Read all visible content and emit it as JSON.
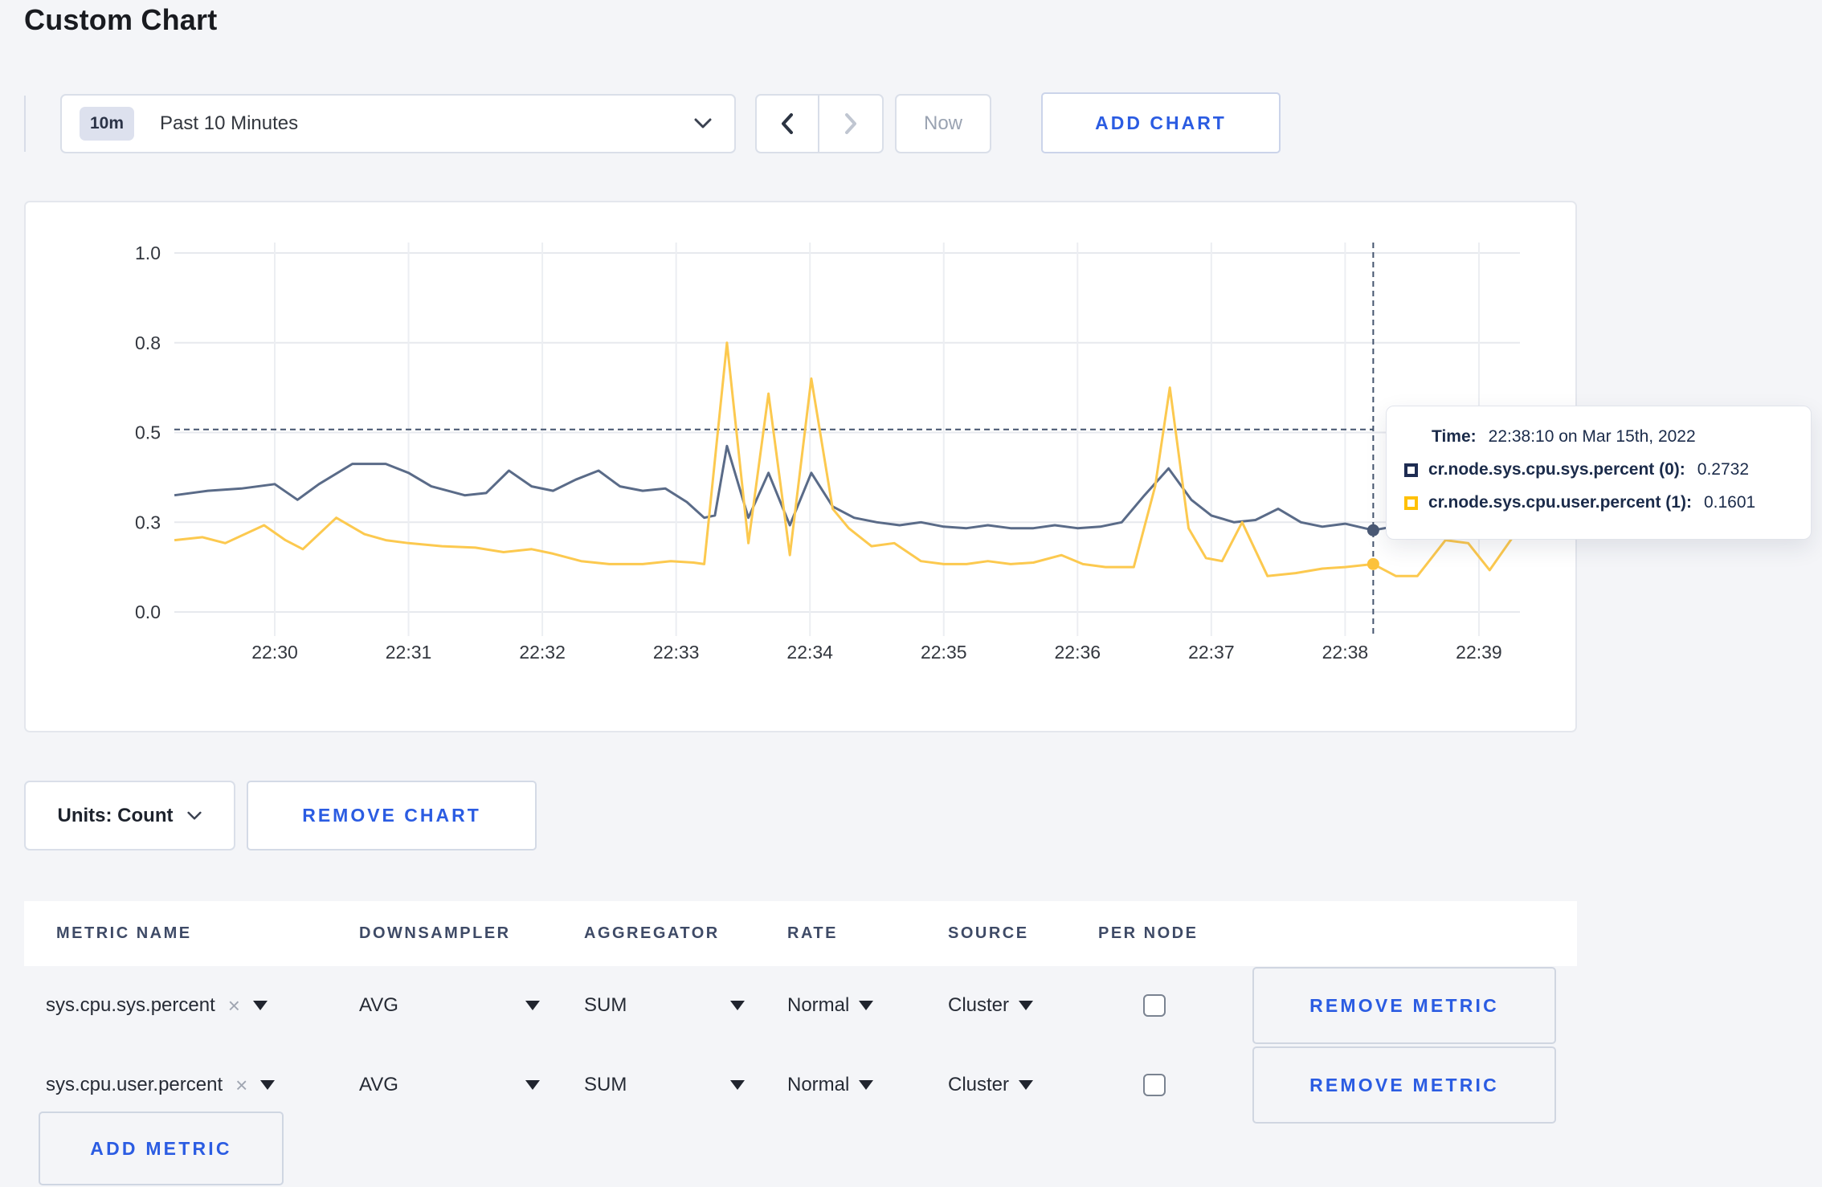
{
  "page": {
    "title": "Custom Chart",
    "background": "#f4f5f8",
    "accent_blue": "#2b5ce2"
  },
  "toolbar": {
    "time_range": {
      "badge": "10m",
      "label": "Past 10 Minutes"
    },
    "now_label": "Now",
    "add_chart_label": "ADD CHART"
  },
  "tooltip": {
    "time_label": "Time:",
    "time_value": "22:38:10 on Mar 15th, 2022",
    "series": [
      {
        "label": "cr.node.sys.cpu.sys.percent (0):",
        "value": "0.2732",
        "color": "#1e2c52"
      },
      {
        "label": "cr.node.sys.cpu.user.percent (1):",
        "value": "0.1601",
        "color": "#ffc107"
      }
    ]
  },
  "chart_footer": {
    "units_label": "Units: Count",
    "remove_chart_label": "REMOVE CHART"
  },
  "metrics_table": {
    "headers": [
      "METRIC NAME",
      "DOWNSAMPLER",
      "AGGREGATOR",
      "RATE",
      "SOURCE",
      "PER NODE"
    ],
    "rows": [
      {
        "metric": "sys.cpu.sys.percent",
        "downsampler": "AVG",
        "aggregator": "SUM",
        "rate": "Normal",
        "source": "Cluster",
        "per_node_checked": false,
        "remove_label": "REMOVE METRIC"
      },
      {
        "metric": "sys.cpu.user.percent",
        "downsampler": "AVG",
        "aggregator": "SUM",
        "rate": "Normal",
        "source": "Cluster",
        "per_node_checked": false,
        "remove_label": "REMOVE METRIC"
      }
    ],
    "add_metric_label": "ADD METRIC"
  },
  "chart_data": {
    "type": "line",
    "title": "",
    "xlabel": "",
    "ylabel": "",
    "grid": true,
    "x_axis": {
      "tick_labels": [
        "22:30",
        "22:31",
        "22:32",
        "22:33",
        "22:34",
        "22:35",
        "22:36",
        "22:37",
        "22:38",
        "22:39"
      ],
      "tick_t": [
        1,
        2,
        3,
        4,
        5,
        6,
        7,
        8,
        9,
        10
      ]
    },
    "y_axis": {
      "tick_labels": [
        "0.0",
        "0.3",
        "0.5",
        "0.8",
        "1.0"
      ],
      "tick_values": [
        0,
        0.3,
        0.5,
        0.8,
        1.0
      ],
      "ylim": [
        0,
        1
      ]
    },
    "crosshair": {
      "t": 9.21,
      "time": "22:38:10",
      "guide_value": 0.51,
      "marker_values": [
        0.2732,
        0.1601
      ]
    },
    "series": [
      {
        "name": "cr.node.sys.cpu.sys.percent",
        "color": "#5a6b88",
        "marker_color": "#4b5a75",
        "points": [
          [
            0.25,
            0.36
          ],
          [
            0.5,
            0.37
          ],
          [
            0.75,
            0.375
          ],
          [
            1.0,
            0.385
          ],
          [
            1.17,
            0.35
          ],
          [
            1.33,
            0.385
          ],
          [
            1.58,
            0.43
          ],
          [
            1.83,
            0.43
          ],
          [
            2.0,
            0.41
          ],
          [
            2.17,
            0.38
          ],
          [
            2.42,
            0.36
          ],
          [
            2.58,
            0.365
          ],
          [
            2.75,
            0.415
          ],
          [
            2.92,
            0.38
          ],
          [
            3.08,
            0.37
          ],
          [
            3.25,
            0.395
          ],
          [
            3.42,
            0.415
          ],
          [
            3.58,
            0.38
          ],
          [
            3.75,
            0.37
          ],
          [
            3.92,
            0.375
          ],
          [
            4.08,
            0.345
          ],
          [
            4.21,
            0.31
          ],
          [
            4.29,
            0.315
          ],
          [
            4.38,
            0.47
          ],
          [
            4.54,
            0.31
          ],
          [
            4.69,
            0.41
          ],
          [
            4.85,
            0.29
          ],
          [
            5.01,
            0.41
          ],
          [
            5.17,
            0.335
          ],
          [
            5.33,
            0.31
          ],
          [
            5.5,
            0.3
          ],
          [
            5.67,
            0.29
          ],
          [
            5.83,
            0.3
          ],
          [
            6.0,
            0.285
          ],
          [
            6.17,
            0.28
          ],
          [
            6.33,
            0.29
          ],
          [
            6.5,
            0.28
          ],
          [
            6.67,
            0.28
          ],
          [
            6.83,
            0.29
          ],
          [
            7.0,
            0.28
          ],
          [
            7.17,
            0.285
          ],
          [
            7.33,
            0.3
          ],
          [
            7.5,
            0.36
          ],
          [
            7.68,
            0.42
          ],
          [
            7.85,
            0.35
          ],
          [
            8.0,
            0.315
          ],
          [
            8.17,
            0.3
          ],
          [
            8.33,
            0.305
          ],
          [
            8.5,
            0.33
          ],
          [
            8.67,
            0.3
          ],
          [
            8.83,
            0.285
          ],
          [
            9.0,
            0.295
          ],
          [
            9.21,
            0.2732
          ],
          [
            9.42,
            0.29
          ],
          [
            9.67,
            0.3
          ],
          [
            9.92,
            0.3
          ],
          [
            10.17,
            0.31
          ],
          [
            10.3,
            0.3
          ]
        ]
      },
      {
        "name": "cr.node.sys.cpu.user.percent",
        "color": "#fcc94f",
        "marker_color": "#fcc23c",
        "points": [
          [
            0.25,
            0.24
          ],
          [
            0.46,
            0.25
          ],
          [
            0.63,
            0.23
          ],
          [
            0.92,
            0.29
          ],
          [
            1.08,
            0.24
          ],
          [
            1.21,
            0.21
          ],
          [
            1.46,
            0.31
          ],
          [
            1.67,
            0.26
          ],
          [
            1.83,
            0.24
          ],
          [
            2.0,
            0.23
          ],
          [
            2.25,
            0.22
          ],
          [
            2.5,
            0.215
          ],
          [
            2.71,
            0.2
          ],
          [
            2.92,
            0.21
          ],
          [
            3.08,
            0.195
          ],
          [
            3.29,
            0.17
          ],
          [
            3.5,
            0.16
          ],
          [
            3.75,
            0.16
          ],
          [
            3.96,
            0.17
          ],
          [
            4.13,
            0.165
          ],
          [
            4.21,
            0.16
          ],
          [
            4.38,
            0.8
          ],
          [
            4.54,
            0.23
          ],
          [
            4.69,
            0.63
          ],
          [
            4.85,
            0.19
          ],
          [
            5.01,
            0.68
          ],
          [
            5.17,
            0.33
          ],
          [
            5.29,
            0.28
          ],
          [
            5.46,
            0.22
          ],
          [
            5.63,
            0.23
          ],
          [
            5.83,
            0.17
          ],
          [
            6.0,
            0.16
          ],
          [
            6.17,
            0.16
          ],
          [
            6.33,
            0.17
          ],
          [
            6.5,
            0.16
          ],
          [
            6.67,
            0.165
          ],
          [
            6.88,
            0.19
          ],
          [
            7.04,
            0.16
          ],
          [
            7.21,
            0.15
          ],
          [
            7.42,
            0.15
          ],
          [
            7.58,
            0.38
          ],
          [
            7.69,
            0.65
          ],
          [
            7.83,
            0.28
          ],
          [
            7.96,
            0.18
          ],
          [
            8.08,
            0.17
          ],
          [
            8.23,
            0.3
          ],
          [
            8.42,
            0.12
          ],
          [
            8.63,
            0.13
          ],
          [
            8.83,
            0.145
          ],
          [
            9.0,
            0.15
          ],
          [
            9.21,
            0.1601
          ],
          [
            9.38,
            0.12
          ],
          [
            9.54,
            0.12
          ],
          [
            9.75,
            0.24
          ],
          [
            9.92,
            0.23
          ],
          [
            10.08,
            0.14
          ],
          [
            10.3,
            0.28
          ]
        ]
      }
    ]
  }
}
